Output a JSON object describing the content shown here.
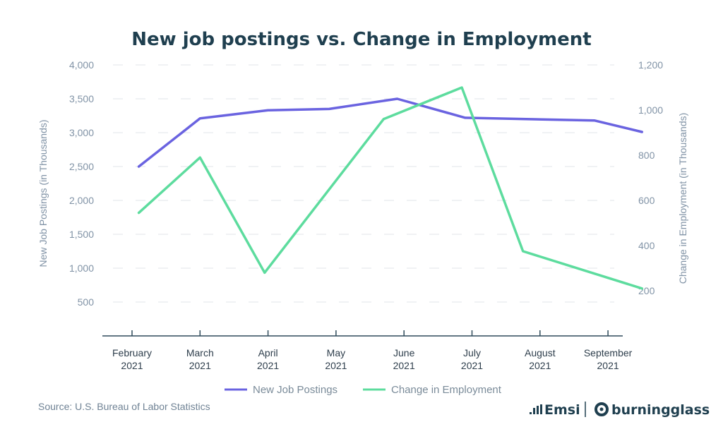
{
  "chart_data": {
    "type": "line",
    "title": "New job postings vs. Change in Employment",
    "categories": [
      "February 2021",
      "March 2021",
      "April 2021",
      "May 2021",
      "June 2021",
      "July 2021",
      "August 2021",
      "September 2021"
    ],
    "category_lines": [
      [
        "February",
        "2021"
      ],
      [
        "March",
        "2021"
      ],
      [
        "April",
        "2021"
      ],
      [
        "May",
        "2021"
      ],
      [
        "June",
        "2021"
      ],
      [
        "July",
        "2021"
      ],
      [
        "August",
        "2021"
      ],
      [
        "September",
        "2021"
      ]
    ],
    "ylabel": "New Job Postings (in Thousands)",
    "y2label": "Change in Employment  (in Thousands)",
    "ylim": [
      0,
      4000
    ],
    "y2lim": [
      0,
      1200
    ],
    "yticks": [
      500,
      1000,
      1500,
      2000,
      2500,
      3000,
      3500,
      4000
    ],
    "ytick_labels": [
      "500",
      "1,000",
      "1,500",
      "2,000",
      "2,500",
      "3,000",
      "3,500",
      "4,000"
    ],
    "y2ticks": [
      200,
      400,
      600,
      800,
      1000,
      1200
    ],
    "y2tick_labels": [
      "200",
      "400",
      "600",
      "800",
      "1,000",
      "1,200"
    ],
    "grid": "horizontal dashed",
    "legend_position": "bottom",
    "series": [
      {
        "name": "New Job Postings",
        "axis": "left",
        "color": "#6a63e0",
        "points": [
          [
            0.1,
            2500
          ],
          [
            1.0,
            3210
          ],
          [
            2.0,
            3330
          ],
          [
            2.9,
            3350
          ],
          [
            3.9,
            3500
          ],
          [
            4.9,
            3220
          ],
          [
            5.8,
            3200
          ],
          [
            6.8,
            3180
          ],
          [
            7.5,
            3010
          ]
        ]
      },
      {
        "name": "Change in Employment",
        "axis": "right",
        "color": "#5ddc9e",
        "points": [
          [
            0.1,
            545
          ],
          [
            1.0,
            790
          ],
          [
            1.95,
            280
          ],
          [
            3.7,
            960
          ],
          [
            4.85,
            1100
          ],
          [
            5.75,
            375
          ],
          [
            7.5,
            210
          ]
        ]
      }
    ]
  },
  "footer": {
    "source": "Source: U.S. Bureau of Labor Statistics",
    "logo_left": "Emsi",
    "logo_right": "burningglass"
  }
}
